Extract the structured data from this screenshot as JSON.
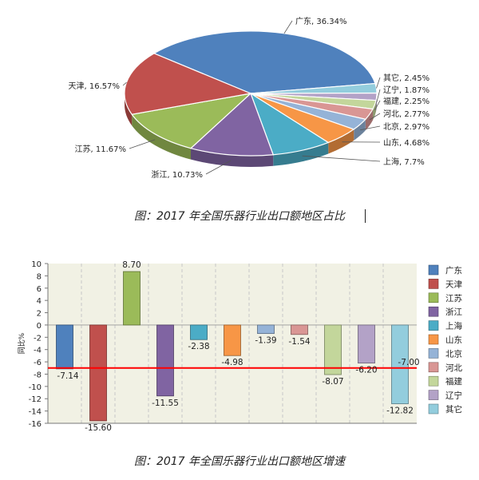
{
  "chart_data": [
    {
      "type": "pie",
      "title": "",
      "slices": [
        {
          "label": "广东",
          "value": 36.34,
          "label_text": "广东, 36.34%",
          "color": "#4f81bd"
        },
        {
          "label": "其它",
          "value": 2.45,
          "label_text": "其它, 2.45%",
          "color": "#93cddd"
        },
        {
          "label": "辽宁",
          "value": 1.87,
          "label_text": "辽宁, 1.87%",
          "color": "#b3a2c7"
        },
        {
          "label": "福建",
          "value": 2.25,
          "label_text": "福建, 2.25%",
          "color": "#c3d69b"
        },
        {
          "label": "河北",
          "value": 2.77,
          "label_text": "河北, 2.77%",
          "color": "#d99694"
        },
        {
          "label": "北京",
          "value": 2.97,
          "label_text": "北京, 2.97%",
          "color": "#95b3d7"
        },
        {
          "label": "山东",
          "value": 4.68,
          "label_text": "山东, 4.68%",
          "color": "#f79646"
        },
        {
          "label": "上海",
          "value": 7.7,
          "label_text": "上海, 7.7%",
          "color": "#4bacc6"
        },
        {
          "label": "浙江",
          "value": 10.73,
          "label_text": "浙江, 10.73%",
          "color": "#8064a2"
        },
        {
          "label": "江苏",
          "value": 11.67,
          "label_text": "江苏, 11.67%",
          "color": "#9bbb59"
        },
        {
          "label": "天津",
          "value": 16.57,
          "label_text": "天津, 16.57%",
          "color": "#c0504d"
        }
      ]
    },
    {
      "type": "bar",
      "title": "",
      "ylabel": "同比%",
      "ylim": [
        -16,
        10
      ],
      "yticks": [
        10,
        8,
        6,
        4,
        2,
        0,
        -2,
        -4,
        -6,
        -8,
        -10,
        -12,
        -14,
        -16
      ],
      "categories": [
        "广东",
        "天津",
        "江苏",
        "浙江",
        "上海",
        "山东",
        "北京",
        "河北",
        "福建",
        "辽宁",
        "其它"
      ],
      "values": [
        -7.14,
        -15.6,
        8.7,
        -11.55,
        -2.38,
        -4.98,
        -1.39,
        -1.54,
        -8.07,
        -6.2,
        -12.82
      ],
      "value_labels": [
        "-7.14",
        "-15.60",
        "8.70",
        "-11.55",
        "-2.38",
        "-4.98",
        "-1.39",
        "-1.54",
        "-8.07",
        "-6.20",
        "-12.82"
      ],
      "colors": [
        "#4f81bd",
        "#c0504d",
        "#9bbb59",
        "#8064a2",
        "#4bacc6",
        "#f79646",
        "#95b3d7",
        "#d99694",
        "#c3d69b",
        "#b3a2c7",
        "#93cddd"
      ],
      "reference_line": {
        "value": -7.0,
        "label": "-7.00",
        "color": "#ff0000"
      },
      "legend": {
        "placement": "right",
        "entries": [
          "广东",
          "天津",
          "江苏",
          "浙江",
          "上海",
          "山东",
          "北京",
          "河北",
          "福建",
          "辽宁",
          "其它"
        ]
      },
      "grid": true
    }
  ],
  "captions": {
    "pie": "图：2017 年全国乐器行业出口额地区占比",
    "bar": "图：2017 年全国乐器行业出口额地区增速"
  }
}
